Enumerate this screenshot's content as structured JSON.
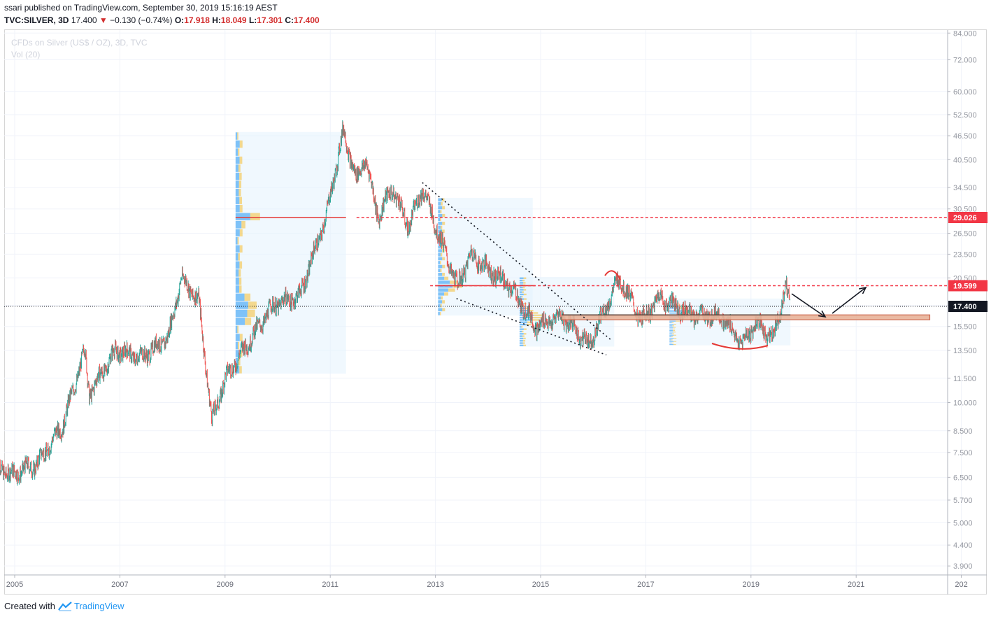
{
  "header": {
    "author": "ssari",
    "publish_text": "published on TradingView.com, September 30, 2019 15:16:19 AEST",
    "symbol": "TVC:SILVER, 3D",
    "last": "17.400",
    "change": "−0.130 (−0.74%)",
    "o_label": "O:",
    "o_value": "17.918",
    "h_label": "H:",
    "h_value": "18.049",
    "l_label": "L:",
    "l_value": "17.301",
    "c_label": "C:",
    "c_value": "17.400"
  },
  "legend": {
    "series_title": "CFDs on Silver (US$ / OZ), 3D, TVC",
    "indicator": "Vol (20)"
  },
  "footer": {
    "created_with": "Created with",
    "brand": "TradingView",
    "brand_icon": "tradingview-logo-icon"
  },
  "colors": {
    "up": "#26a69a",
    "down": "#ef5350",
    "badge_red": "#f23645",
    "badge_black": "#131722",
    "vp_blue": "#2196f3",
    "vp_yellow": "#f5c342",
    "vp_bg": "#e3f2fd"
  },
  "chart_data": {
    "type": "candlestick",
    "title": "CFDs on Silver (US$ / OZ), 3D, TVC",
    "y_scale": "log",
    "y_ticks": [
      "84.000",
      "72.000",
      "60.000",
      "52.500",
      "46.500",
      "40.500",
      "34.500",
      "30.500",
      "26.500",
      "23.500",
      "20.500",
      "17.500",
      "15.500",
      "13.500",
      "11.500",
      "10.000",
      "8.500",
      "7.500",
      "6.500",
      "5.700",
      "5.000",
      "4.400",
      "3.900"
    ],
    "x_ticks": [
      "2005",
      "2007",
      "2009",
      "2011",
      "2013",
      "2015",
      "2017",
      "2019",
      "2021",
      "202"
    ],
    "price_badges": [
      {
        "label": "29.026",
        "style": "red"
      },
      {
        "label": "19.599",
        "style": "red"
      },
      {
        "label": "17.400",
        "style": "black"
      }
    ],
    "key_levels": [
      {
        "price": 29.026,
        "kind": "dashed-red"
      },
      {
        "price": 19.599,
        "kind": "dashed-red"
      },
      {
        "price": 17.4,
        "kind": "dotted-black"
      },
      {
        "price": 16.3,
        "kind": "support-band"
      }
    ],
    "price_path": [
      {
        "t": "2004-09",
        "p": 7.0
      },
      {
        "t": "2004-12",
        "p": 6.6
      },
      {
        "t": "2005-06",
        "p": 7.0
      },
      {
        "t": "2005-12",
        "p": 8.8
      },
      {
        "t": "2006-05",
        "p": 13.5
      },
      {
        "t": "2006-06",
        "p": 10.5
      },
      {
        "t": "2006-12",
        "p": 13.5
      },
      {
        "t": "2007-06",
        "p": 13.0
      },
      {
        "t": "2007-12",
        "p": 14.5
      },
      {
        "t": "2008-03",
        "p": 20.5
      },
      {
        "t": "2008-07",
        "p": 18.0
      },
      {
        "t": "2008-10",
        "p": 9.0
      },
      {
        "t": "2009-01",
        "p": 11.5
      },
      {
        "t": "2009-06",
        "p": 14.0
      },
      {
        "t": "2009-12",
        "p": 17.5
      },
      {
        "t": "2010-06",
        "p": 18.5
      },
      {
        "t": "2010-12",
        "p": 29.0
      },
      {
        "t": "2011-04",
        "p": 48.0
      },
      {
        "t": "2011-07",
        "p": 36.0
      },
      {
        "t": "2011-09",
        "p": 41.0
      },
      {
        "t": "2011-12",
        "p": 29.0
      },
      {
        "t": "2012-03",
        "p": 34.5
      },
      {
        "t": "2012-07",
        "p": 27.5
      },
      {
        "t": "2012-10",
        "p": 34.5
      },
      {
        "t": "2013-06",
        "p": 19.5
      },
      {
        "t": "2013-09",
        "p": 23.5
      },
      {
        "t": "2014-06",
        "p": 19.5
      },
      {
        "t": "2014-12",
        "p": 15.5
      },
      {
        "t": "2015-06",
        "p": 16.5
      },
      {
        "t": "2015-12",
        "p": 14.0
      },
      {
        "t": "2016-07",
        "p": 20.5
      },
      {
        "t": "2016-12",
        "p": 16.0
      },
      {
        "t": "2017-04",
        "p": 18.3
      },
      {
        "t": "2017-12",
        "p": 16.5
      },
      {
        "t": "2018-06",
        "p": 16.5
      },
      {
        "t": "2018-11",
        "p": 14.0
      },
      {
        "t": "2019-02",
        "p": 15.8
      },
      {
        "t": "2019-06",
        "p": 14.5
      },
      {
        "t": "2019-09",
        "p": 19.6
      },
      {
        "t": "2019-09-30",
        "p": 17.4
      }
    ]
  }
}
